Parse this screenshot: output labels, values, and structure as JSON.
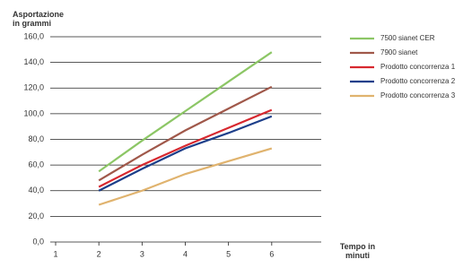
{
  "chart_data": {
    "type": "line",
    "y_label": "Asportazione in grammi",
    "x_label": "Tempo in minuti",
    "x": [
      2,
      3,
      4,
      5,
      6
    ],
    "series": [
      {
        "name": "7500 sianet CER",
        "color": "#8cc665",
        "values": [
          55,
          79,
          102,
          125,
          148
        ]
      },
      {
        "name": "7900 sianet",
        "color": "#a0584a",
        "values": [
          48,
          68,
          87,
          104,
          121
        ]
      },
      {
        "name": "Prodotto concorrenza 1",
        "color": "#d7282f",
        "values": [
          43,
          60,
          75,
          89,
          103
        ]
      },
      {
        "name": "Prodotto concorrenza 2",
        "color": "#1d3f8a",
        "values": [
          40,
          57,
          73,
          85,
          98
        ]
      },
      {
        "name": "Prodotto concorrenza 3",
        "color": "#e0b36e",
        "values": [
          29,
          40,
          53,
          63,
          73
        ]
      }
    ],
    "xlim": [
      1,
      7
    ],
    "xticks": [
      1,
      2,
      3,
      4,
      5,
      6
    ],
    "ylim": [
      0,
      160
    ],
    "yticks": [
      {
        "value": 0,
        "label": "0,0"
      },
      {
        "value": 20,
        "label": "20,0"
      },
      {
        "value": 40,
        "label": "40,0"
      },
      {
        "value": 60,
        "label": "60,0"
      },
      {
        "value": 80,
        "label": "80,0"
      },
      {
        "value": 100,
        "label": "100,0"
      },
      {
        "value": 120,
        "label": "120,0"
      },
      {
        "value": 140,
        "label": "140,0"
      },
      {
        "value": 160,
        "label": "160,0"
      }
    ],
    "grid": true,
    "legend": "right"
  }
}
